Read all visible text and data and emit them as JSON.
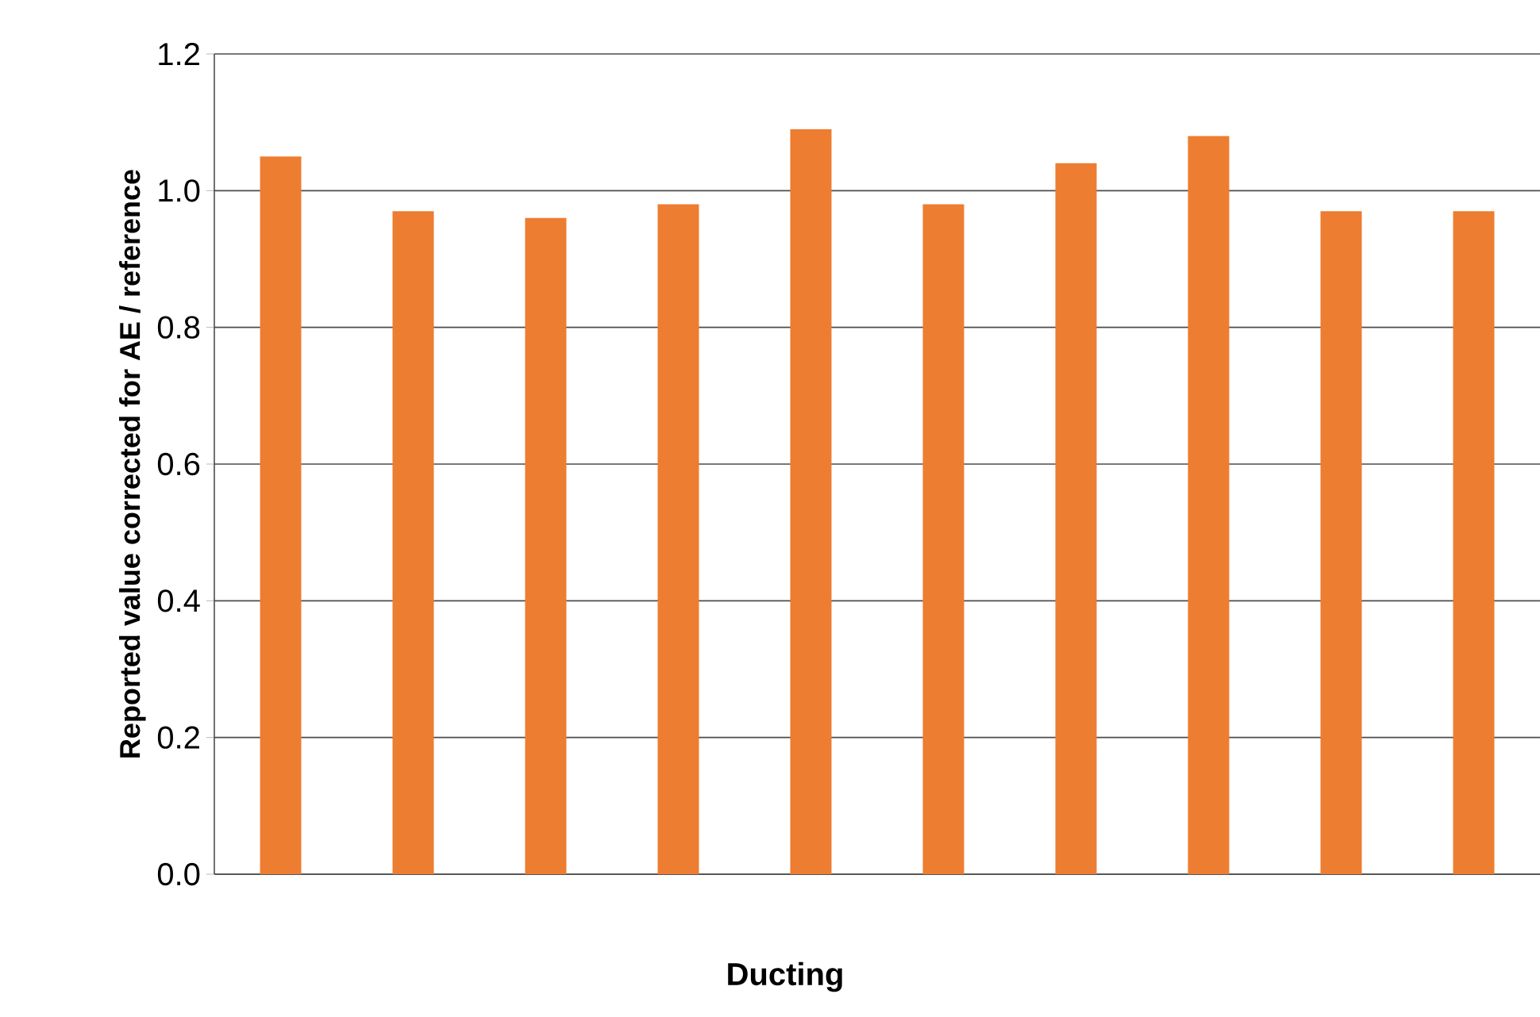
{
  "chart_data": {
    "type": "bar",
    "xlabel": "Ducting",
    "ylabel": "Reported value corrected for AE / reference",
    "categories": [
      null,
      null,
      null,
      null,
      null,
      null,
      null,
      null,
      null,
      null
    ],
    "values": [
      1.05,
      0.97,
      0.96,
      0.98,
      1.09,
      0.98,
      1.04,
      1.08,
      0.97,
      0.97
    ],
    "color": "#ed7d31",
    "ylim": [
      0,
      1.2
    ],
    "yticks": [
      {
        "value": 0,
        "label": "0.0"
      },
      {
        "value": 0.2,
        "label": "0.2"
      },
      {
        "value": 0.4,
        "label": "0.4"
      },
      {
        "value": 0.6,
        "label": "0.6"
      },
      {
        "value": 0.8,
        "label": "0.8"
      },
      {
        "value": 1.0,
        "label": "1.0"
      },
      {
        "value": 1.2,
        "label": "1.2"
      }
    ],
    "grid": "y"
  }
}
